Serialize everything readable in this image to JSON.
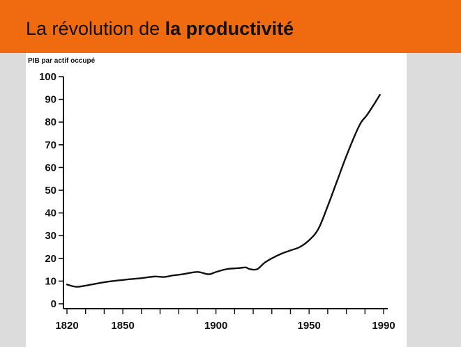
{
  "slide": {
    "title_plain": "La révolution de ",
    "title_bold": "la productivité",
    "colors": {
      "header": "#f06a10",
      "side": "#dcdcdc",
      "line": "#111111"
    }
  },
  "chart_data": {
    "type": "line",
    "ylabel": "PIB par actif occupé",
    "xlabel": "",
    "ylim": [
      0,
      100
    ],
    "xlim": [
      1820,
      1990
    ],
    "y_ticks": [
      "0",
      "10",
      "20",
      "30",
      "40",
      "50",
      "60",
      "70",
      "80",
      "90",
      "100"
    ],
    "x_tick_labels": [
      "1820",
      "1850",
      "1900",
      "1950",
      "1990"
    ],
    "x_minor_step": 10,
    "grid": false,
    "series": [
      {
        "x": [
          1820,
          1825,
          1830,
          1840,
          1850,
          1860,
          1867,
          1872,
          1877,
          1882,
          1890,
          1896,
          1900,
          1906,
          1912,
          1916,
          1918,
          1922,
          1926,
          1930,
          1935,
          1940,
          1945,
          1950,
          1955,
          1960,
          1965,
          1970,
          1975,
          1978,
          1981,
          1985,
          1988
        ],
        "y": [
          8.5,
          7.5,
          8,
          9.5,
          10.5,
          11.3,
          12,
          11.8,
          12.5,
          13,
          14,
          13,
          14,
          15.3,
          15.7,
          16,
          15.3,
          15.2,
          18,
          20,
          22,
          23.5,
          25,
          28,
          33,
          43,
          54,
          65,
          75,
          80,
          83,
          88,
          92
        ]
      }
    ]
  }
}
